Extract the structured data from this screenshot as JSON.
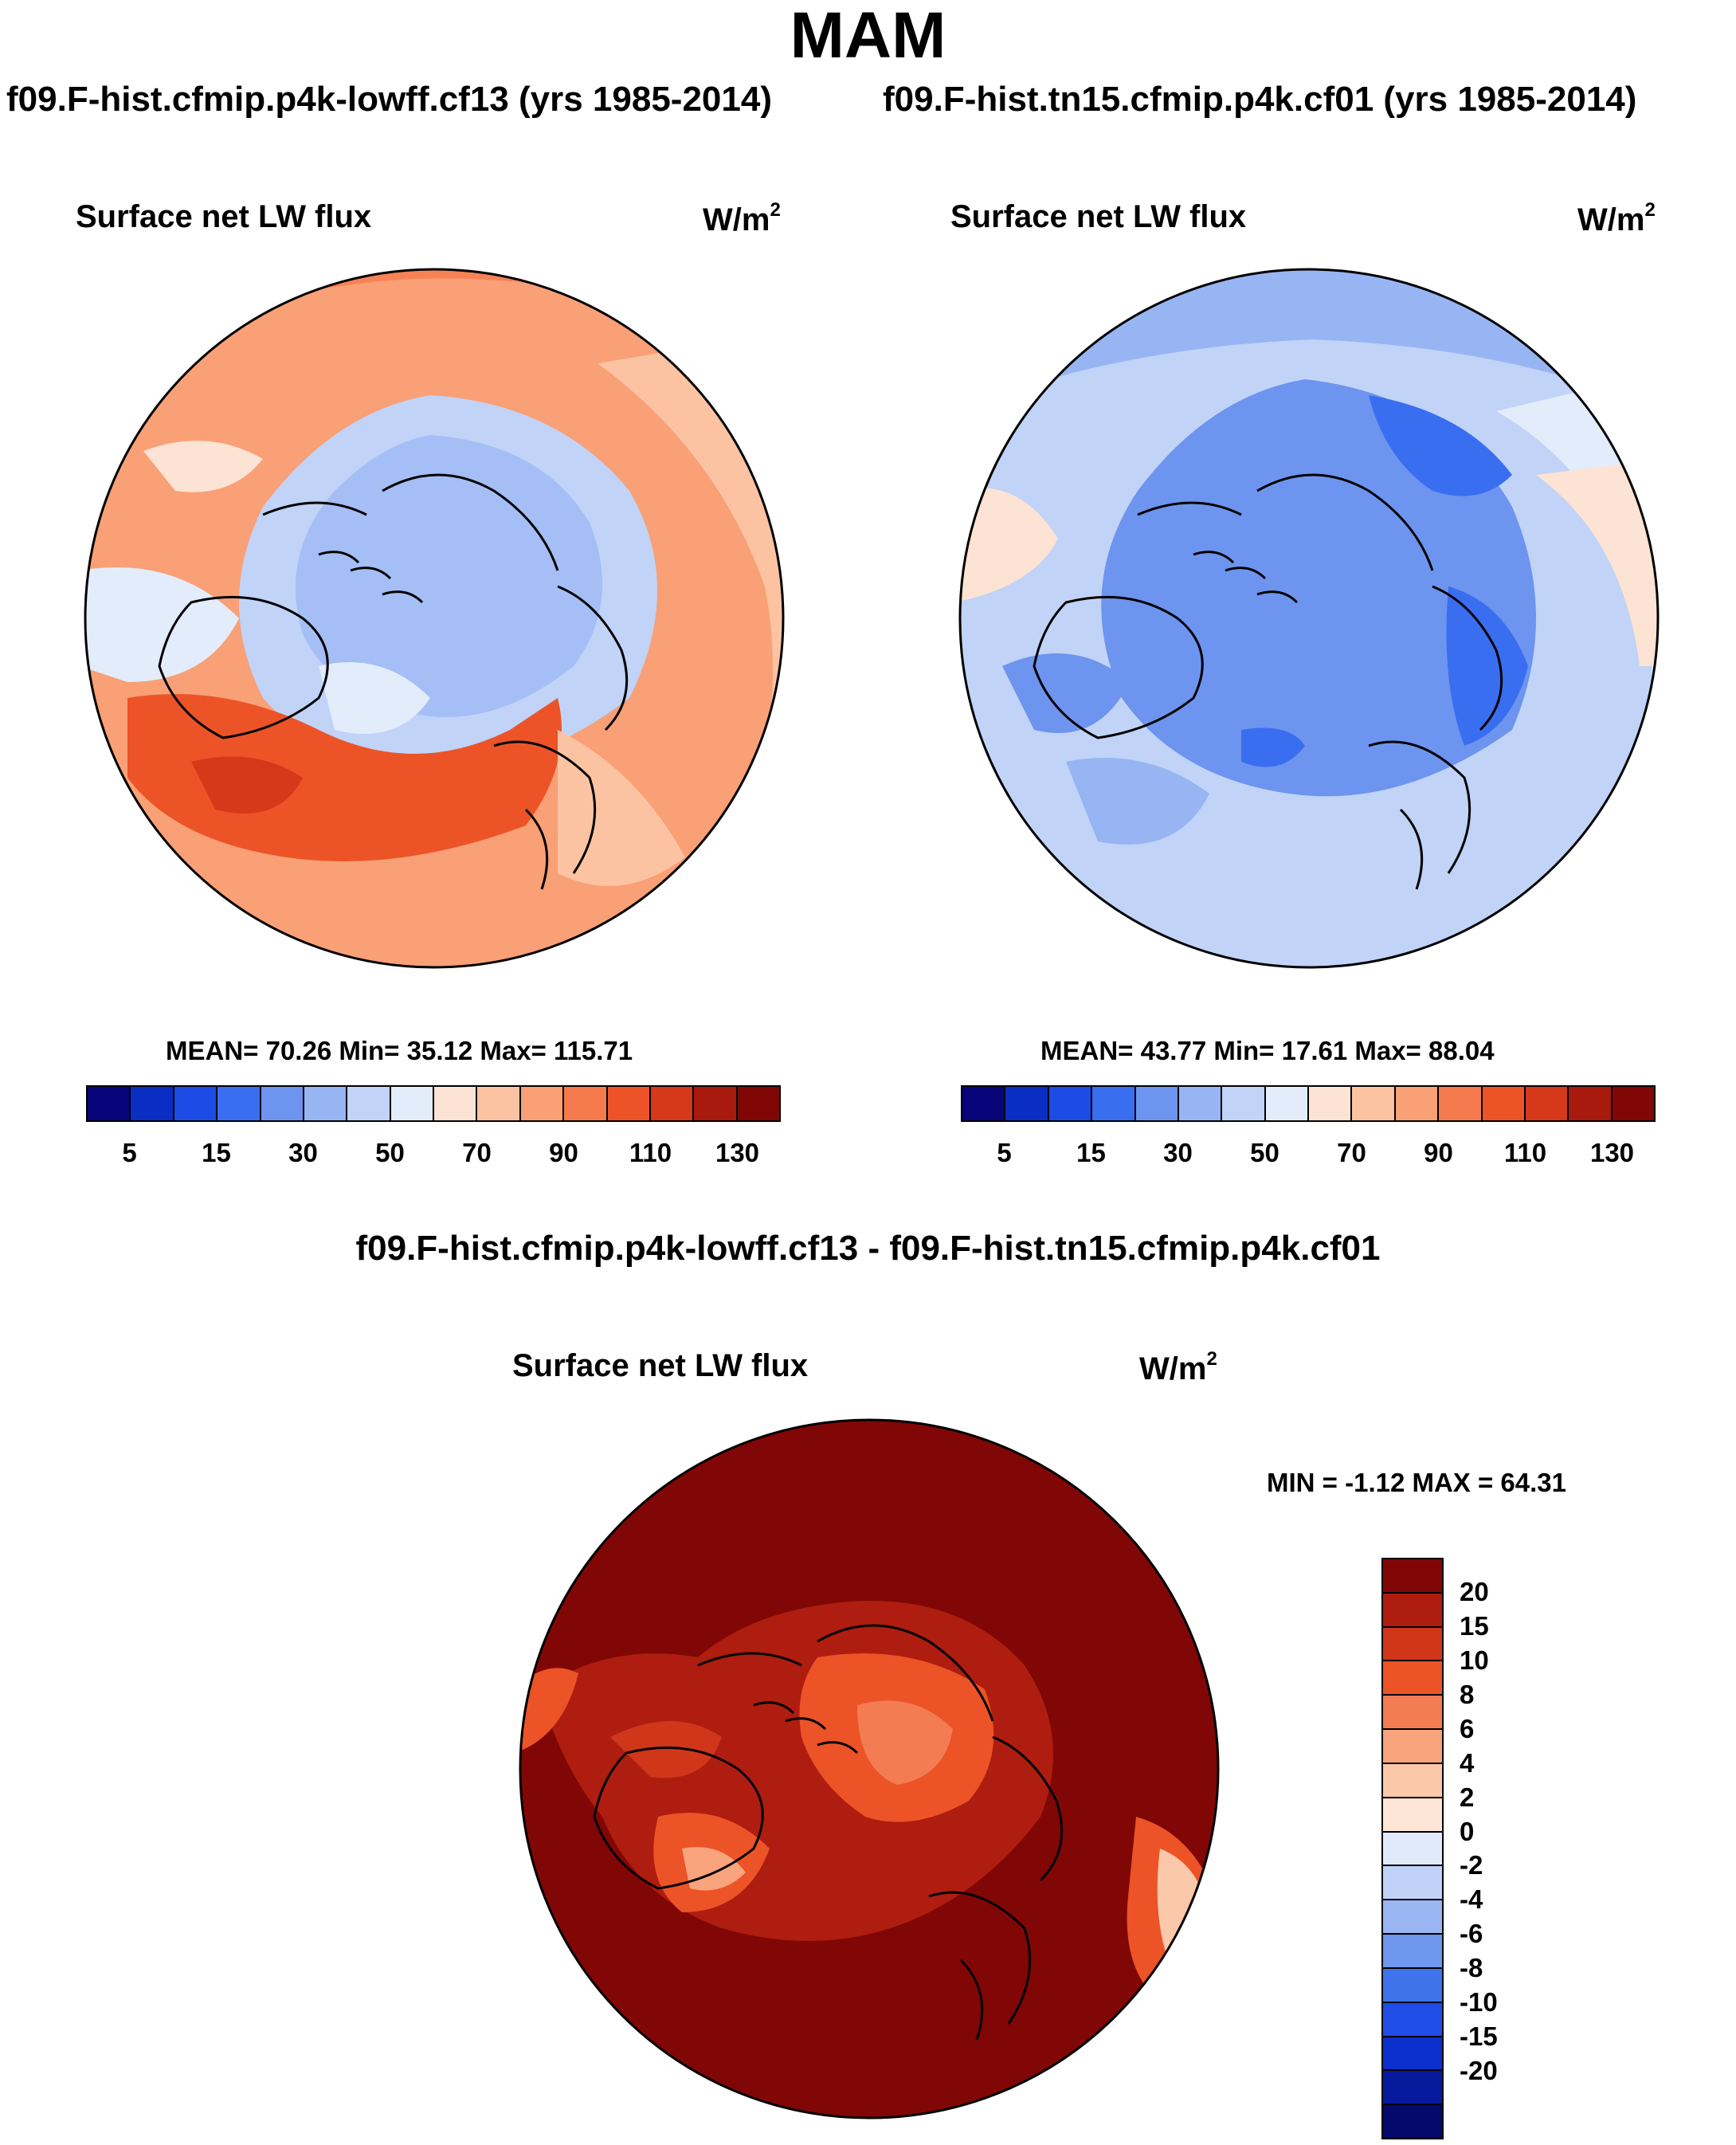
{
  "figure": {
    "title": "MAM",
    "left_case": "f09.F-hist.cfmip.p4k-lowff.cf13 (yrs 1985-2014)",
    "right_case": "f09.F-hist.tn15.cfmip.p4k.cf01 (yrs 1985-2014)",
    "diff_title": "f09.F-hist.cfmip.p4k-lowff.cf13 - f09.F-hist.tn15.cfmip.p4k.cf01"
  },
  "panels": {
    "left": {
      "variable": "Surface net LW flux",
      "units": "W/m",
      "units_exp": "2",
      "stats": "MEAN=  70.26  Min=  35.12  Max= 115.71",
      "fill": "red"
    },
    "right": {
      "variable": "Surface net LW flux",
      "units": "W/m",
      "units_exp": "2",
      "stats": "MEAN=  43.77  Min=  17.61  Max=  88.04",
      "fill": "blue"
    },
    "diff": {
      "variable": "Surface net LW flux",
      "units": "W/m",
      "units_exp": "2",
      "stats": "MIN =  -1.12 MAX =  64.31",
      "fill": "darkred"
    }
  },
  "colorbars": {
    "abs": {
      "colors": [
        "#08047a",
        "#0a2ec4",
        "#1d4be6",
        "#3a6ef0",
        "#6d94ee",
        "#98b5f3",
        "#c1d3f7",
        "#e2ecfb",
        "#fde3d3",
        "#fcc3a3",
        "#f9a076",
        "#f57a4e",
        "#ec5428",
        "#d6391a",
        "#a81a0e",
        "#800705"
      ],
      "ticks": [
        "5",
        "15",
        "30",
        "50",
        "70",
        "90",
        "110",
        "130"
      ]
    },
    "diff": {
      "colors": [
        "#800705",
        "#ae1d0f",
        "#d0361a",
        "#ec5326",
        "#f47c52",
        "#f9a47c",
        "#fcc8aa",
        "#fde6d6",
        "#e1eafa",
        "#c0d2f8",
        "#99b5f2",
        "#6f97ee",
        "#3f73ec",
        "#1f4de6",
        "#0b2fcc",
        "#061a9e",
        "#04096b"
      ],
      "ticks": [
        "20",
        "15",
        "10",
        "8",
        "6",
        "4",
        "2",
        "0",
        "-2",
        "-4",
        "-6",
        "-8",
        "-10",
        "-15",
        "-20"
      ]
    }
  }
}
